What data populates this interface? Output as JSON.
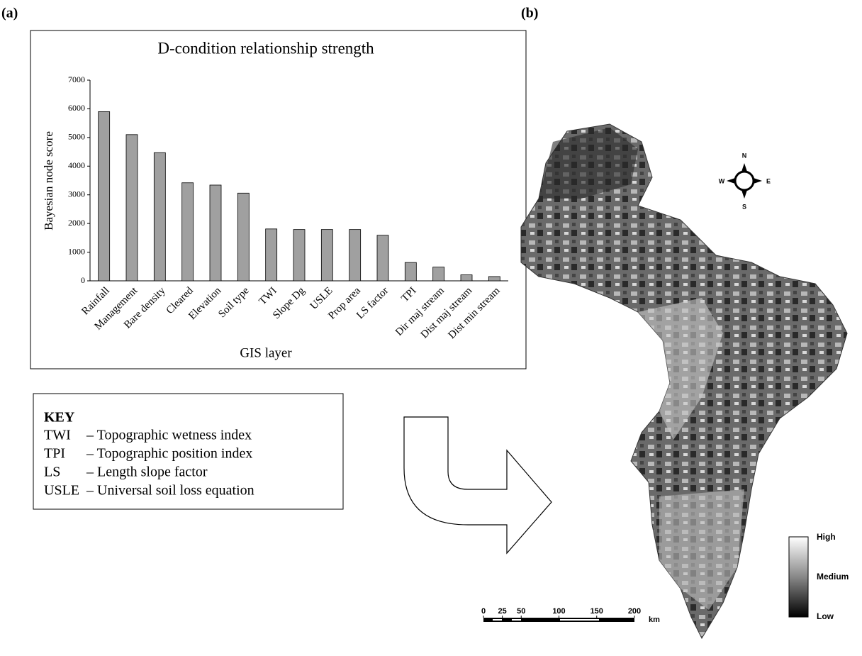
{
  "panels": {
    "a": "(a)",
    "b": "(b)"
  },
  "chart_data": {
    "type": "bar",
    "title": "D-condition relationship strength",
    "x_label": "GIS layer",
    "y_label": "Bayesian node score",
    "categories": [
      "Rainfall",
      "Management",
      "Bare density",
      "Cleared",
      "Elevation",
      "Soil type",
      "TWI",
      "Slope Dg",
      "USLE",
      "Prop area",
      "LS factor",
      "TPI",
      "Dir maj stream",
      "Dist maj stream",
      "Dist min stream"
    ],
    "values": [
      5900,
      5100,
      4470,
      3420,
      3340,
      3060,
      1810,
      1790,
      1790,
      1790,
      1590,
      640,
      480,
      210,
      150
    ],
    "color": "#a0a0a0",
    "ylim": [
      0,
      7000
    ],
    "yticks": [
      0,
      1000,
      2000,
      3000,
      4000,
      5000,
      6000,
      7000
    ],
    "grid": false
  },
  "key": {
    "title": "KEY",
    "entries": [
      {
        "abbr": "TWI",
        "text": "– Topographic wetness index"
      },
      {
        "abbr": "TPI",
        "text": "– Topographic position index"
      },
      {
        "abbr": "LS",
        "text": "– Length slope factor"
      },
      {
        "abbr": "USLE",
        "text": "– Universal soil loss equation"
      }
    ]
  },
  "map": {
    "compass": {
      "n": "N",
      "e": "E",
      "s": "S",
      "w": "W"
    },
    "legend": {
      "high": "High",
      "medium": "Medium",
      "low": "Low"
    },
    "scale": {
      "ticks": [
        0,
        25,
        50,
        100,
        150,
        200
      ],
      "unit": "km"
    }
  }
}
